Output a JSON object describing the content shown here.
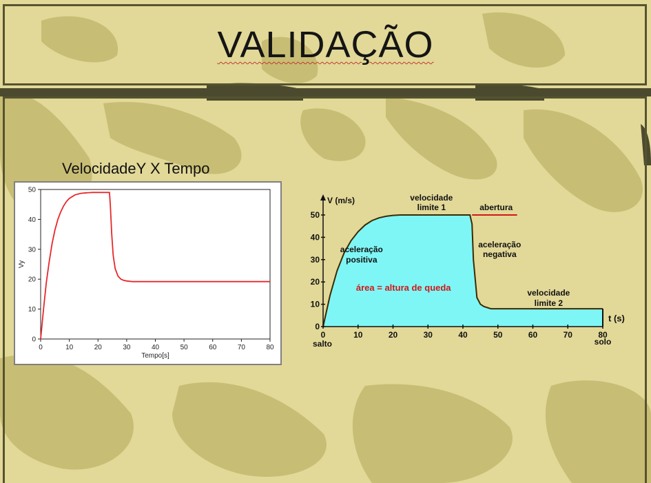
{
  "slide": {
    "title": "VALIDAÇÃO",
    "left_caption": "VelocidadeY X Tempo"
  },
  "colors": {
    "background_light": "#e2d898",
    "camo_mid": "#c8bd74",
    "camo_dark": "#4b4a2f",
    "curve": "#e8262a",
    "fill_area": "#7ff6f6",
    "label_red": "#d01818"
  },
  "chart_data": [
    {
      "type": "line",
      "xlabel": "Tempo[s]",
      "ylabel": "Vy",
      "xlim": [
        0,
        80
      ],
      "ylim": [
        0,
        50
      ],
      "xticks": [
        "0",
        "10",
        "20",
        "30",
        "40",
        "50",
        "60",
        "70",
        "80"
      ],
      "yticks": [
        "0",
        "10",
        "20",
        "30",
        "40",
        "50"
      ],
      "series": [
        {
          "x": [
            0,
            1,
            2,
            3,
            4,
            5,
            6,
            7,
            8,
            9,
            10,
            12,
            14,
            16,
            18,
            20,
            22,
            24,
            24.3,
            24.8,
            25.3,
            26,
            27,
            28,
            29,
            30,
            32,
            40,
            50,
            60,
            70,
            80
          ],
          "values": [
            0,
            10,
            19,
            26,
            32,
            36.5,
            40,
            42.5,
            44.5,
            46,
            47,
            48.2,
            48.7,
            48.9,
            49,
            49,
            49,
            49,
            45,
            35,
            28,
            23.5,
            21,
            20,
            19.6,
            19.4,
            19.2,
            19.2,
            19.2,
            19.2,
            19.2,
            19.2
          ]
        }
      ]
    },
    {
      "type": "area",
      "xlabel": "t (s)",
      "ylabel": "V (m/s)",
      "xlim": [
        0,
        80
      ],
      "ylim": [
        0,
        50
      ],
      "xticks": [
        "0",
        "10",
        "20",
        "30",
        "40",
        "50",
        "60",
        "70",
        "80"
      ],
      "yticks": [
        "0",
        "10",
        "20",
        "30",
        "40",
        "50"
      ],
      "series": [
        {
          "x": [
            0,
            2,
            4,
            6,
            8,
            10,
            12,
            14,
            16,
            18,
            20,
            22,
            40,
            42,
            42.6,
            43,
            44,
            45,
            46,
            48,
            80
          ],
          "values": [
            0,
            14,
            25,
            33,
            38.5,
            42.5,
            45.5,
            47.5,
            48.7,
            49.4,
            49.8,
            50,
            50,
            50,
            46,
            30,
            13,
            10,
            9,
            8,
            8
          ]
        }
      ],
      "annotations": {
        "vel_limit1": [
          "velocidade",
          "limite 1"
        ],
        "opening": "abertura",
        "pos_accel": [
          "aceleração",
          "positiva"
        ],
        "neg_accel": [
          "aceleração",
          "negativa"
        ],
        "area_label": "área = altura de queda",
        "vel_limit2": [
          "velocidade",
          "limite 2"
        ],
        "start_label": "salto",
        "end_label": "solo"
      }
    }
  ]
}
